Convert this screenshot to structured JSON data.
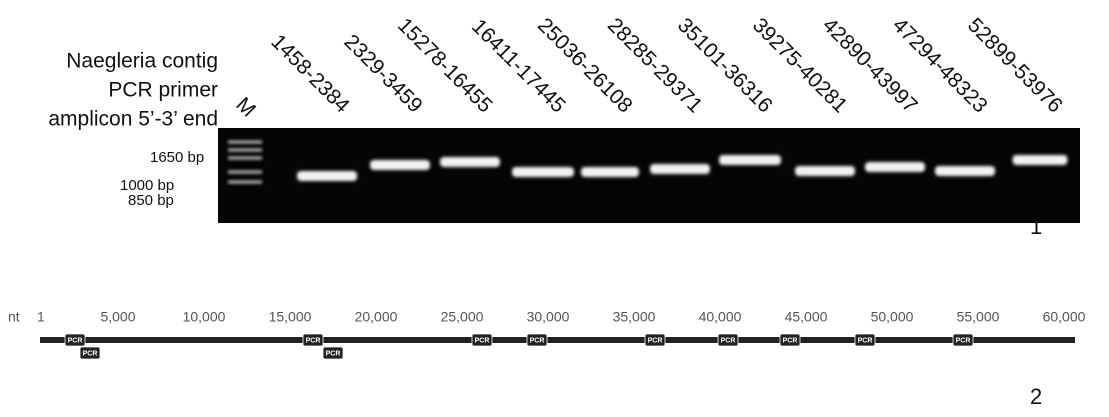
{
  "gel": {
    "heading": [
      "Naegleria contig",
      "PCR primer",
      "amplicon 5’-3’ end"
    ],
    "marker_lane": "M",
    "lanes": [
      "1458-2384",
      "2329-3459",
      "15278-16455",
      "16411-17445",
      "25036-26108",
      "28285-29371",
      "35101-36316",
      "39275-40281",
      "42890-43997",
      "47294-48323",
      "52899-53976"
    ],
    "size_labels": [
      "1650 bp",
      "1000 bp",
      "850 bp"
    ],
    "panel": "1"
  },
  "map": {
    "unit": "nt",
    "ticks": [
      "1",
      "5,000",
      "10,000",
      "15,000",
      "20,000",
      "25,000",
      "30,000",
      "35,000",
      "40,000",
      "45,000",
      "50,000",
      "55,000",
      "60,000"
    ],
    "primer_tag": "PCR",
    "panel": "2"
  }
}
